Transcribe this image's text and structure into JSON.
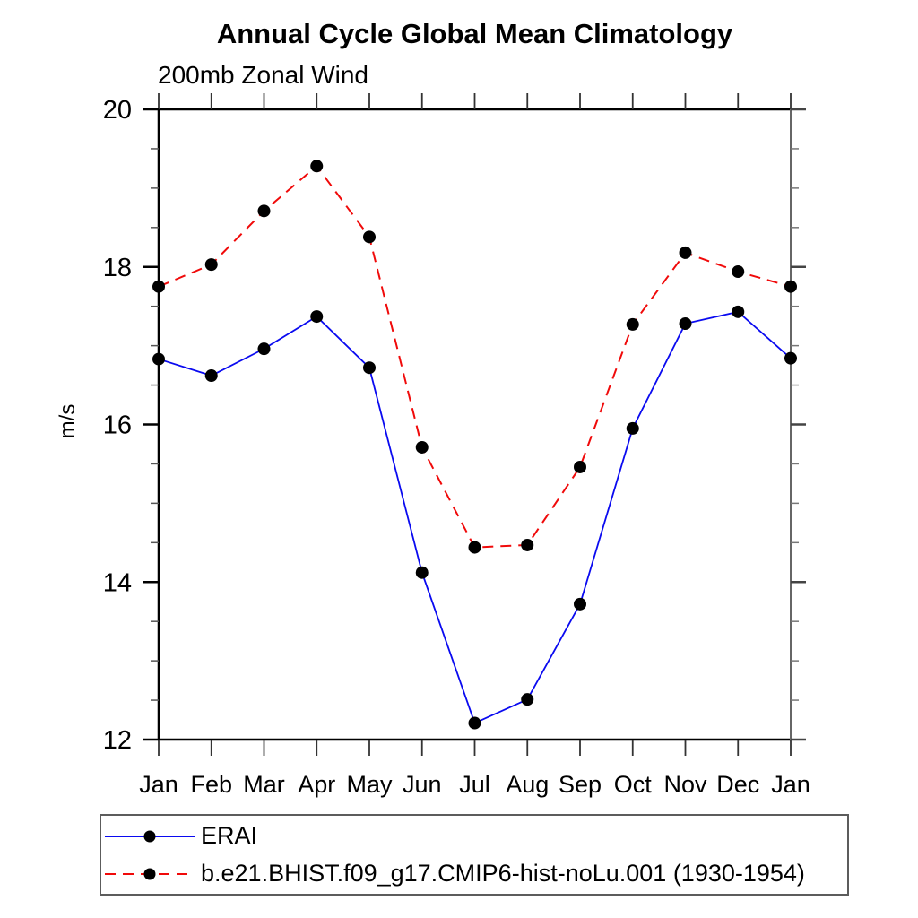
{
  "title": "Annual Cycle Global Mean Climatology",
  "subtitle": "200mb Zonal Wind",
  "ylabel": "m/s",
  "legend": {
    "items": [
      {
        "label": "ERAI",
        "color": "#0a0af0",
        "style": "solid"
      },
      {
        "label": "b.e21.BHIST.f09_g17.CMIP6-hist-noLu.001 (1930-1954)",
        "color": "#f00a0a",
        "style": "dashed"
      }
    ],
    "marker_color": "#000000"
  },
  "chart_data": {
    "type": "line",
    "title": "Annual Cycle Global Mean Climatology",
    "subtitle": "200mb Zonal Wind",
    "xlabel": "",
    "ylabel": "m/s",
    "x_tick_labels": [
      "Jan",
      "Feb",
      "Mar",
      "Apr",
      "May",
      "Jun",
      "Jul",
      "Aug",
      "Sep",
      "Oct",
      "Nov",
      "Dec",
      "Jan"
    ],
    "ylim": [
      12,
      20
    ],
    "y_major_ticks": [
      12,
      14,
      16,
      18,
      20
    ],
    "y_minor_step": 0.5,
    "grid": "off",
    "legend_position": "bottom-left-box",
    "marker": "filled-circle",
    "marker_color": "#000000",
    "series": [
      {
        "name": "ERAI",
        "color": "#0a0af0",
        "dash": "solid",
        "values": [
          16.83,
          16.62,
          16.96,
          17.37,
          16.72,
          14.12,
          12.21,
          12.51,
          13.72,
          15.95,
          17.28,
          17.43,
          16.84
        ]
      },
      {
        "name": "b.e21.BHIST.f09_g17.CMIP6-hist-noLu.001 (1930-1954)",
        "color": "#f00a0a",
        "dash": "dashed",
        "values": [
          17.75,
          18.03,
          18.71,
          19.28,
          18.38,
          15.71,
          14.44,
          14.47,
          15.46,
          17.27,
          18.18,
          17.94,
          17.75
        ]
      }
    ]
  }
}
